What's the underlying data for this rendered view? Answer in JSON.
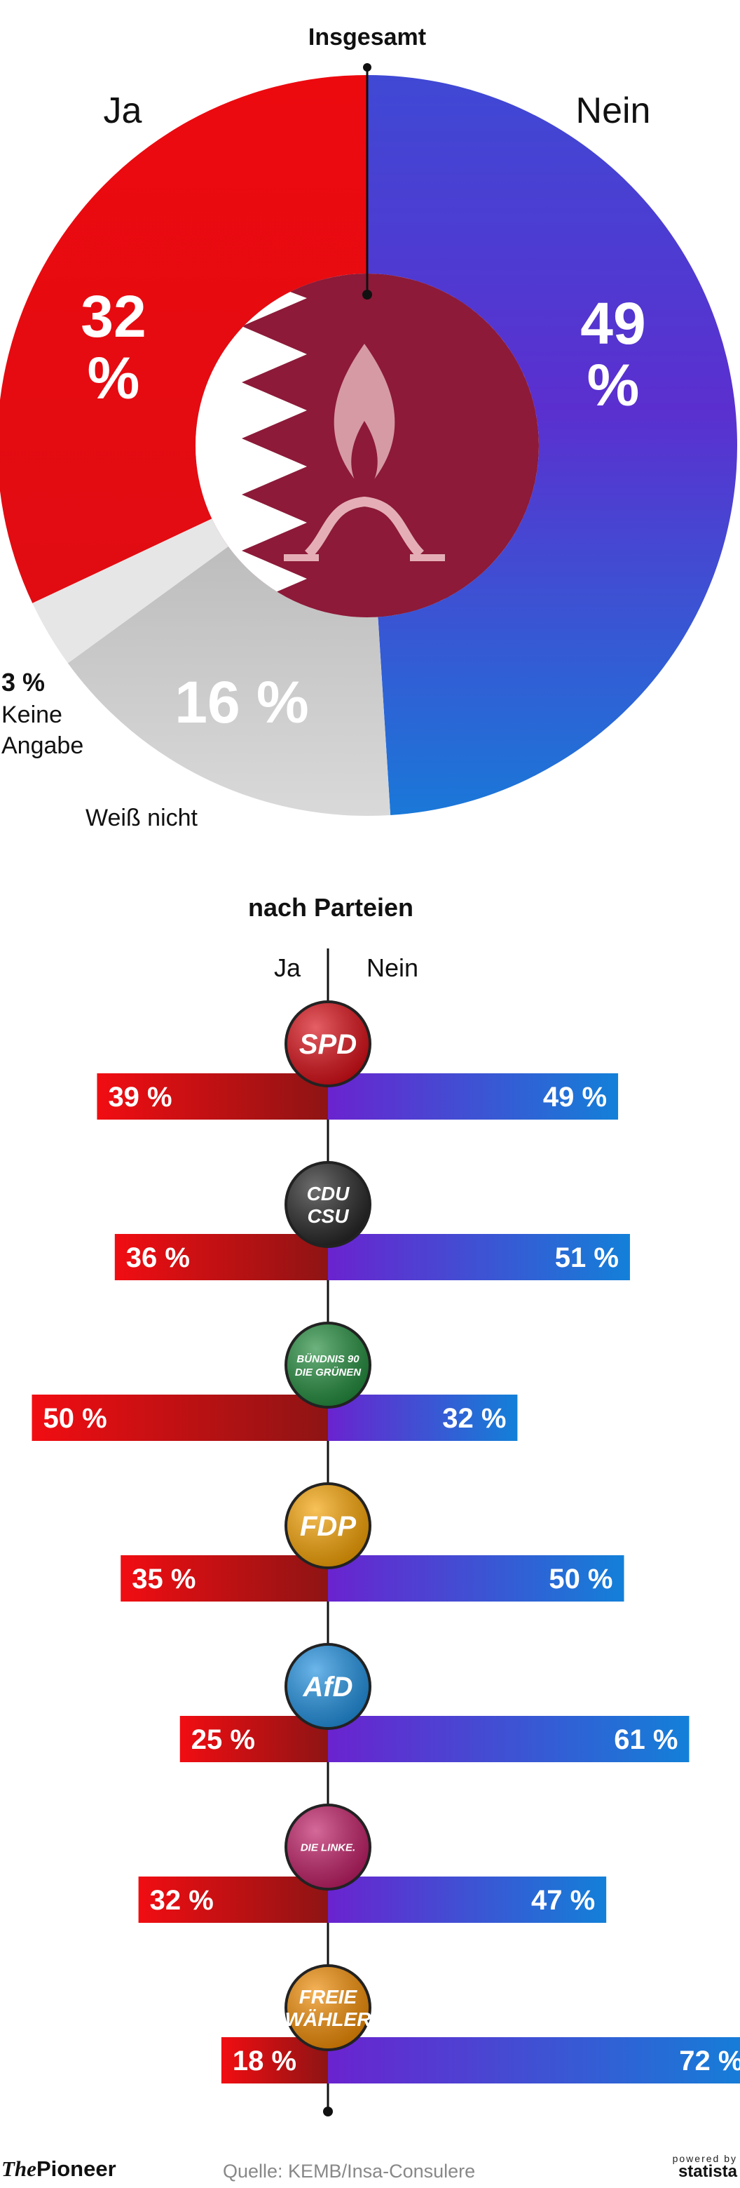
{
  "chart_data": [
    {
      "type": "pie",
      "title": "Insgesamt",
      "labels": [
        "Ja",
        "Nein",
        "Weiß nicht",
        "Keine Angabe"
      ],
      "values": [
        32,
        49,
        16,
        3
      ],
      "value_labels": [
        "32 %",
        "49 %",
        "16 %",
        "3 %"
      ],
      "colors": [
        "#e3060b",
        "#3b4fd6",
        "#c8c8c8",
        "#e6e6e6"
      ]
    },
    {
      "type": "bar",
      "title": "nach Parteien",
      "categories": [
        "SPD",
        "CDU/CSU",
        "Bündnis 90/Die Grünen",
        "FDP",
        "AfD",
        "Die Linke",
        "Freie Wähler"
      ],
      "series": [
        {
          "name": "Ja",
          "values": [
            39,
            36,
            50,
            35,
            25,
            32,
            18
          ]
        },
        {
          "name": "Nein",
          "values": [
            49,
            51,
            32,
            50,
            61,
            47,
            72
          ]
        }
      ],
      "value_labels": {
        "Ja": [
          "39 %",
          "36 %",
          "50 %",
          "35 %",
          "25 %",
          "32 %",
          "18 %"
        ],
        "Nein": [
          "49 %",
          "51 %",
          "32 %",
          "50 %",
          "61 %",
          "47 %",
          "72 %"
        ]
      }
    }
  ],
  "logos": [
    {
      "party": "SPD",
      "lines": [
        "SPD"
      ],
      "color": "#d70a12"
    },
    {
      "party": "CDU/CSU",
      "lines": [
        "CDU",
        "CSU"
      ],
      "color": "#222222"
    },
    {
      "party": "Grüne",
      "lines": [
        "BÜNDNIS 90",
        "DIE GRÜNEN"
      ],
      "color": "#1f8a3a"
    },
    {
      "party": "FDP",
      "lines": [
        "FDP"
      ],
      "color": "#f5a100"
    },
    {
      "party": "AfD",
      "lines": [
        "AfD"
      ],
      "color": "#1d8fe0"
    },
    {
      "party": "Linke",
      "lines": [
        "DIE LINKE."
      ],
      "color": "#be1a63"
    },
    {
      "party": "Freie Wähler",
      "lines": [
        "FREIE",
        "WÄHLER"
      ],
      "color": "#f08a00"
    }
  ],
  "footer": {
    "brand_the": "The",
    "brand_pioneer": "Pioneer",
    "source": "Quelle: KEMB/Insa-Consulere",
    "powered_by": "powered by",
    "statista": "statista"
  }
}
